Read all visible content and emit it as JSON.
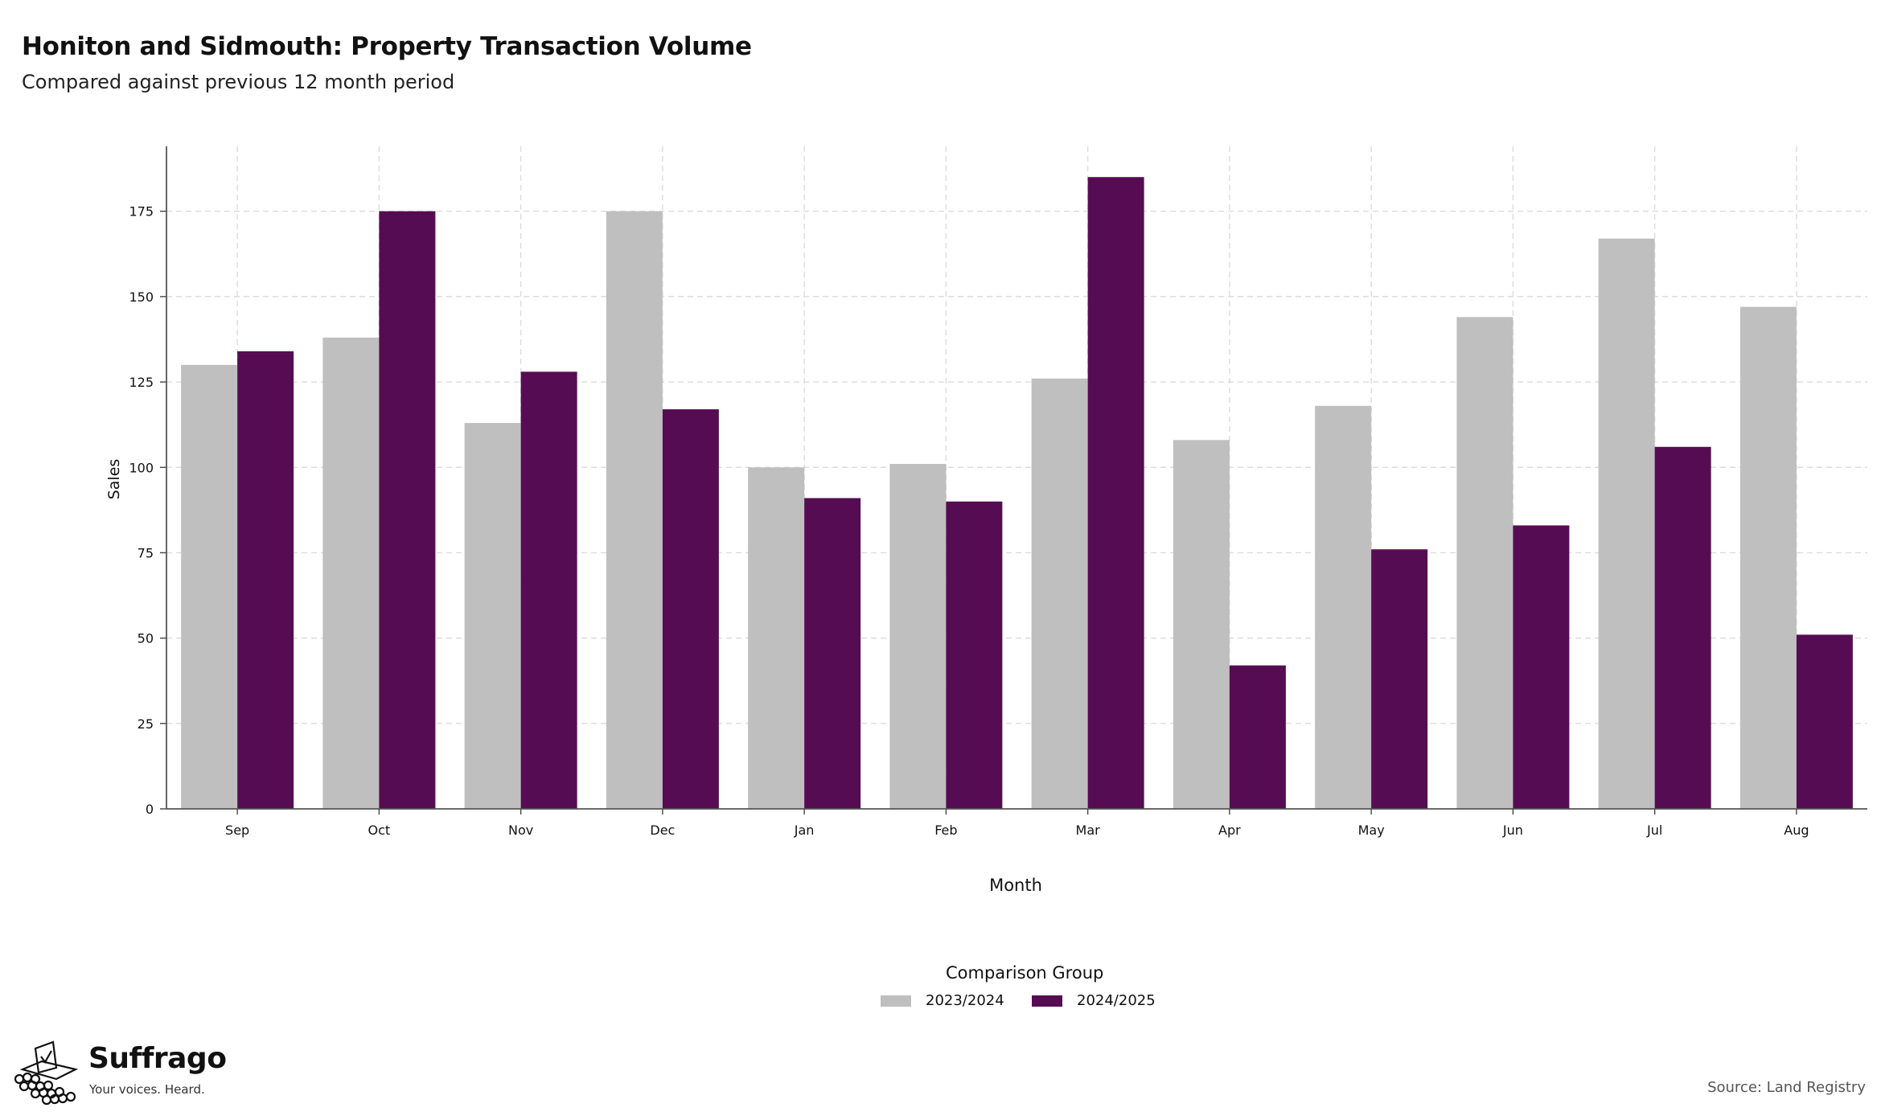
{
  "header": {
    "title": "Honiton and Sidmouth: Property Transaction Volume",
    "subtitle": "Compared against previous 12 month period"
  },
  "chart_data": {
    "type": "bar",
    "categories": [
      "Sep",
      "Oct",
      "Nov",
      "Dec",
      "Jan",
      "Feb",
      "Mar",
      "Apr",
      "May",
      "Jun",
      "Jul",
      "Aug"
    ],
    "series": [
      {
        "name": "2023/2024",
        "color": "#bfbfbf",
        "values": [
          130,
          138,
          113,
          175,
          100,
          101,
          126,
          108,
          118,
          144,
          167,
          147
        ]
      },
      {
        "name": "2024/2025",
        "color": "#560c52",
        "values": [
          134,
          175,
          128,
          117,
          91,
          90,
          185,
          42,
          76,
          83,
          106,
          51
        ]
      }
    ],
    "xlabel": "Month",
    "ylabel": "Sales",
    "ylim": [
      0,
      194
    ],
    "yticks": [
      0,
      25,
      50,
      75,
      100,
      125,
      150,
      175
    ],
    "grid": true,
    "legend_title": "Comparison Group",
    "legend_position": "bottom"
  },
  "footer": {
    "brand": "Suffrago",
    "tagline": "Your voices. Heard.",
    "source": "Source: Land Registry"
  }
}
